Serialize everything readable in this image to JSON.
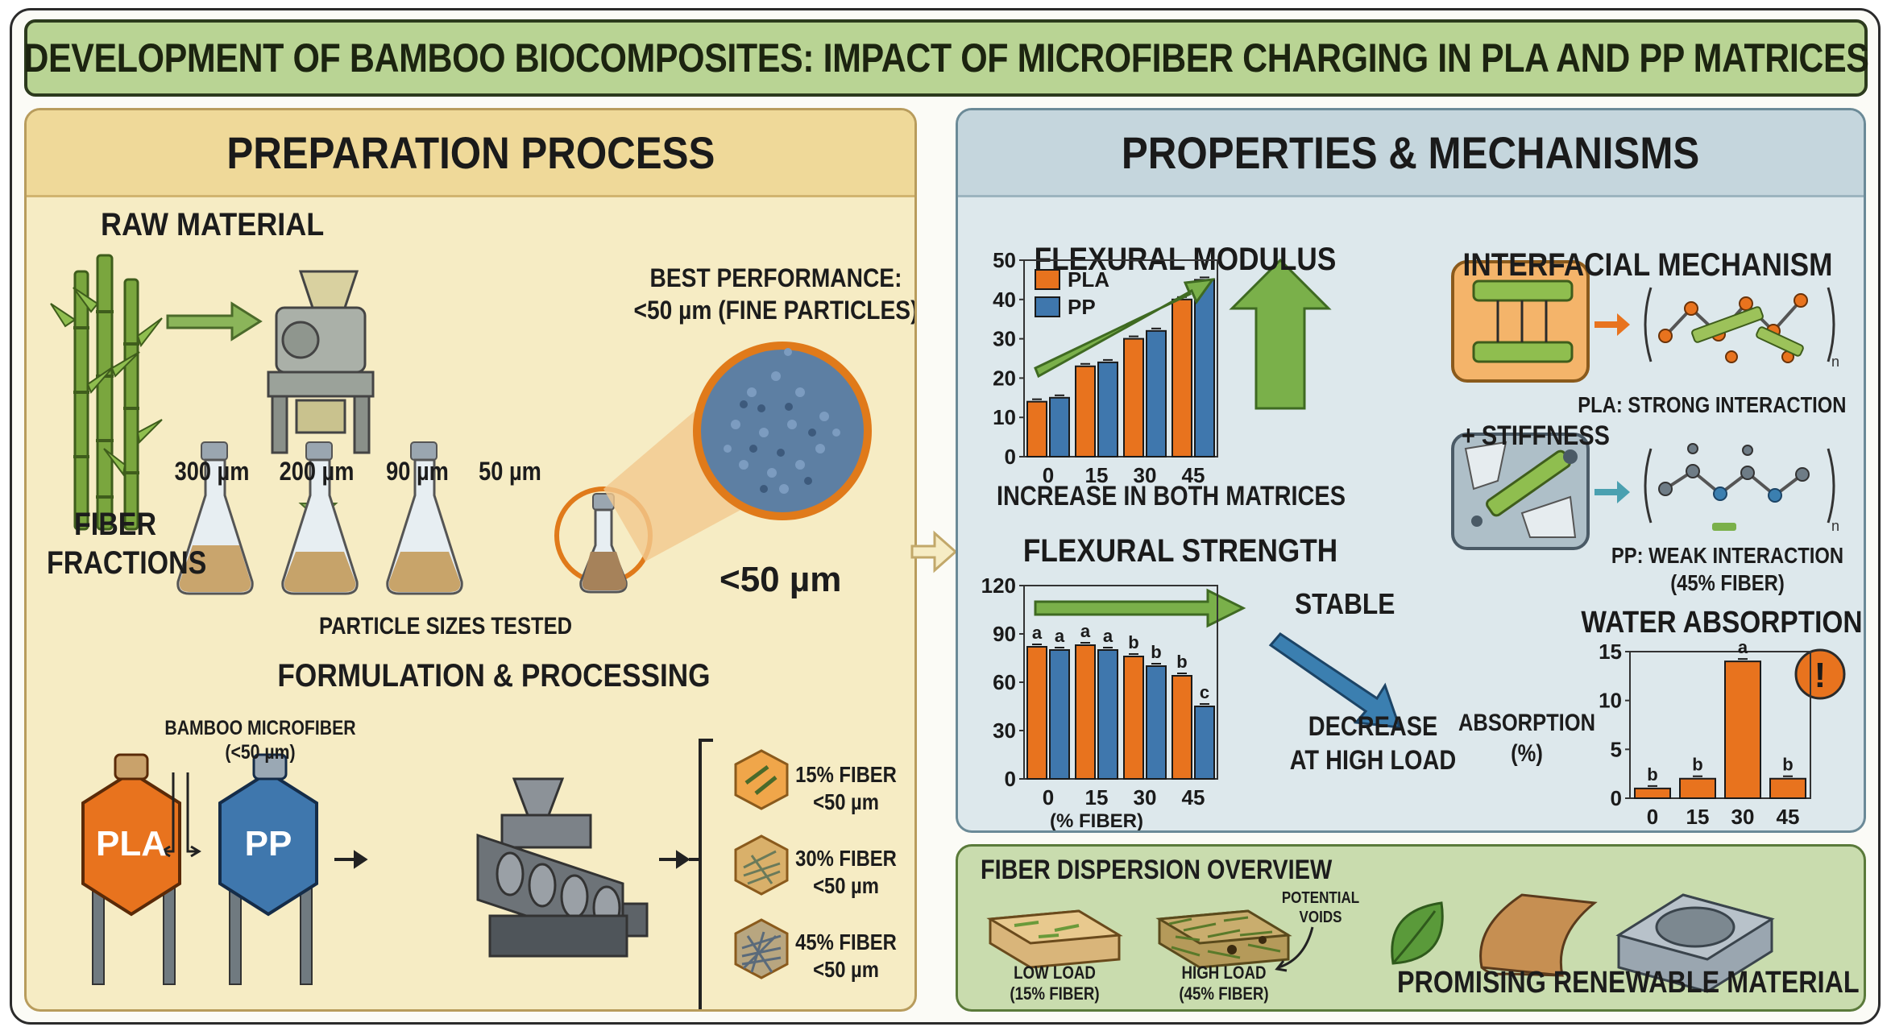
{
  "title": "DEVELOPMENT OF BAMBOO BIOCOMPOSITES: IMPACT OF MICROFIBER CHARGING IN PLA AND PP MATRICES",
  "preparation": {
    "heading": "PREPARATION PROCESS",
    "raw_material": "RAW MATERIAL",
    "best_line1": "BEST PERFORMANCE:",
    "best_line2": "<50 µm (FINE PARTICLES)",
    "fine_label": "<50 µm",
    "fiber_fractions_line1": "FIBER",
    "fiber_fractions_line2": "FRACTIONS",
    "sizes": [
      "300 µm",
      "200 µm",
      "90 µm",
      "50 µm"
    ],
    "particle_sizes_tested": "PARTICLE SIZES TESTED",
    "formulation_heading": "FORMULATION & PROCESSING",
    "microfiber_line1": "BAMBOO MICROFIBER",
    "microfiber_line2": "(<50 µm)",
    "pla_tank": "PLA",
    "pp_tank": "PP",
    "loads": [
      {
        "line1": "15% FIBER",
        "line2": "<50 µm"
      },
      {
        "line1": "30% FIBER",
        "line2": "<50 µm"
      },
      {
        "line1": "45% FIBER",
        "line2": "<50 µm"
      }
    ]
  },
  "properties": {
    "heading": "PROPERTIES & MECHANISMS",
    "stiffness_label": "+ STIFFNESS",
    "modulus_caption": "INCREASE IN BOTH MATRICES",
    "stable_label": "STABLE",
    "decrease_line1": "DECREASE",
    "decrease_line2": "AT HIGH LOAD",
    "interfacial_heading": "INTERFACIAL MECHANISM",
    "pla_strong": "PLA: STRONG INTERACTION",
    "pp_weak_line1": "PP: WEAK INTERACTION",
    "pp_weak_line2": "(45% FIBER)",
    "absorption_line1": "ABSORPTION",
    "absorption_line2": "(%)",
    "warning": "!",
    "n_label": "n"
  },
  "dispersion": {
    "heading": "FIBER DISPERSION OVERVIEW",
    "low_line1": "LOW LOAD",
    "low_line2": "(15% FIBER)",
    "high_line1": "HIGH LOAD",
    "high_line2": "(45% FIBER)",
    "voids_line1": "POTENTIAL",
    "voids_line2": "VOIDS",
    "promising": "PROMISING RENEWABLE MATERIAL"
  },
  "colors": {
    "pla": "#e8731e",
    "pp": "#3f77ad",
    "green_arrow": "#7ab04a",
    "blue_arrow": "#3b7fb0"
  },
  "chart_data": [
    {
      "type": "bar",
      "title": "FLEXURAL MODULUS",
      "categories": [
        "0",
        "15",
        "30",
        "45"
      ],
      "series": [
        {
          "name": "PLA",
          "values": [
            14,
            23,
            30,
            40
          ]
        },
        {
          "name": "PP",
          "values": [
            15,
            24,
            32,
            45
          ]
        }
      ],
      "ylim": [
        0,
        50
      ],
      "yticks": [
        "0",
        "10",
        "20",
        "30",
        "40",
        "50"
      ],
      "legend": "top-left"
    },
    {
      "type": "bar",
      "title": "FLEXURAL STRENGTH",
      "categories": [
        "0",
        "15",
        "30",
        "45"
      ],
      "xlabel": "(% FIBER)",
      "series": [
        {
          "name": "PLA",
          "values": [
            82,
            83,
            76,
            64
          ],
          "labels": [
            "a",
            "a",
            "b",
            "b"
          ]
        },
        {
          "name": "PP",
          "values": [
            80,
            80,
            70,
            45
          ],
          "labels": [
            "a",
            "a",
            "b",
            "c"
          ]
        }
      ],
      "ylim": [
        0,
        120
      ],
      "yticks": [
        "0",
        "30",
        "60",
        "90",
        "120"
      ],
      "ytick_values": [
        0,
        30,
        60,
        90,
        120
      ]
    },
    {
      "type": "bar",
      "title": "WATER ABSORPTION",
      "categories": [
        "0",
        "15",
        "30",
        "45"
      ],
      "values": [
        1,
        2,
        14,
        2
      ],
      "labels": [
        "b",
        "b",
        "a",
        "b"
      ],
      "ylim": [
        0,
        15
      ],
      "yticks": [
        "0",
        "5",
        "10",
        "15"
      ]
    }
  ]
}
